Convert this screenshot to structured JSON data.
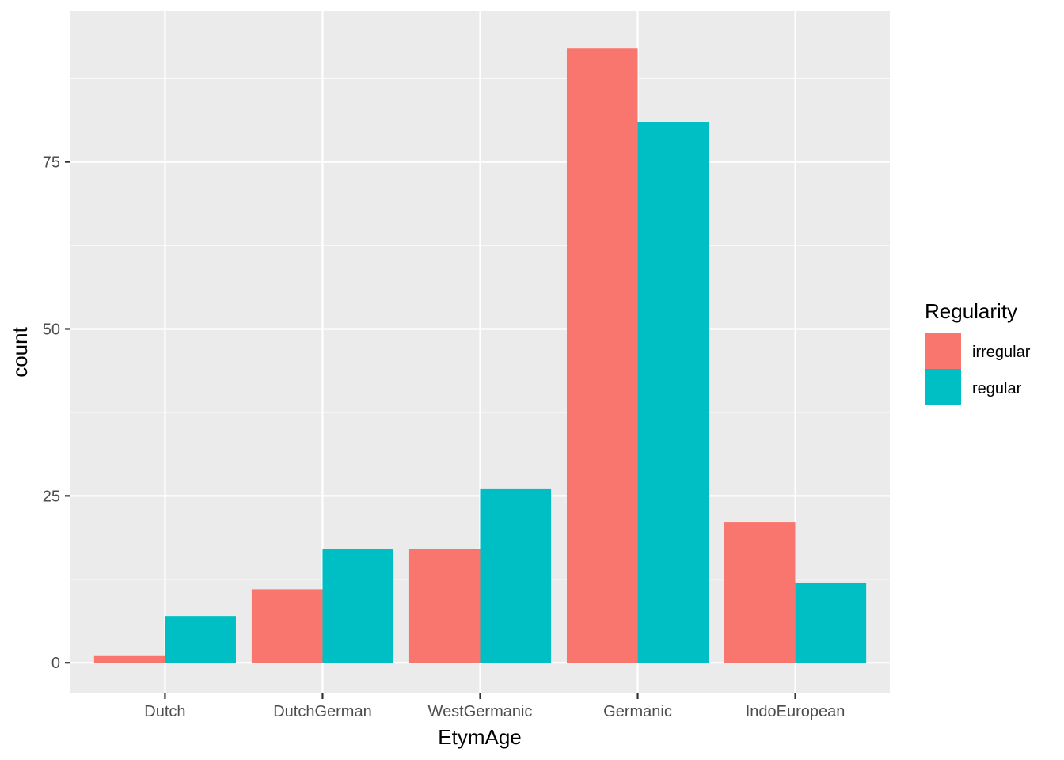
{
  "chart_data": {
    "type": "bar",
    "categories": [
      "Dutch",
      "DutchGerman",
      "WestGermanic",
      "Germanic",
      "IndoEuropean"
    ],
    "series": [
      {
        "name": "irregular",
        "color": "#F8766D",
        "values": [
          1,
          11,
          17,
          92,
          21
        ]
      },
      {
        "name": "regular",
        "color": "#00BFC4",
        "values": [
          7,
          17,
          26,
          81,
          12
        ]
      }
    ],
    "xlabel": "EtymAge",
    "ylabel": "count",
    "ylim": [
      -4.6,
      97.6
    ],
    "yticks": [
      0,
      25,
      50,
      75
    ],
    "ytick_labels": [
      "0",
      "25",
      "50",
      "75"
    ],
    "legend_title": "Regularity",
    "legend_position": "right",
    "grid": true,
    "panel_background": "#EBEBEB"
  }
}
